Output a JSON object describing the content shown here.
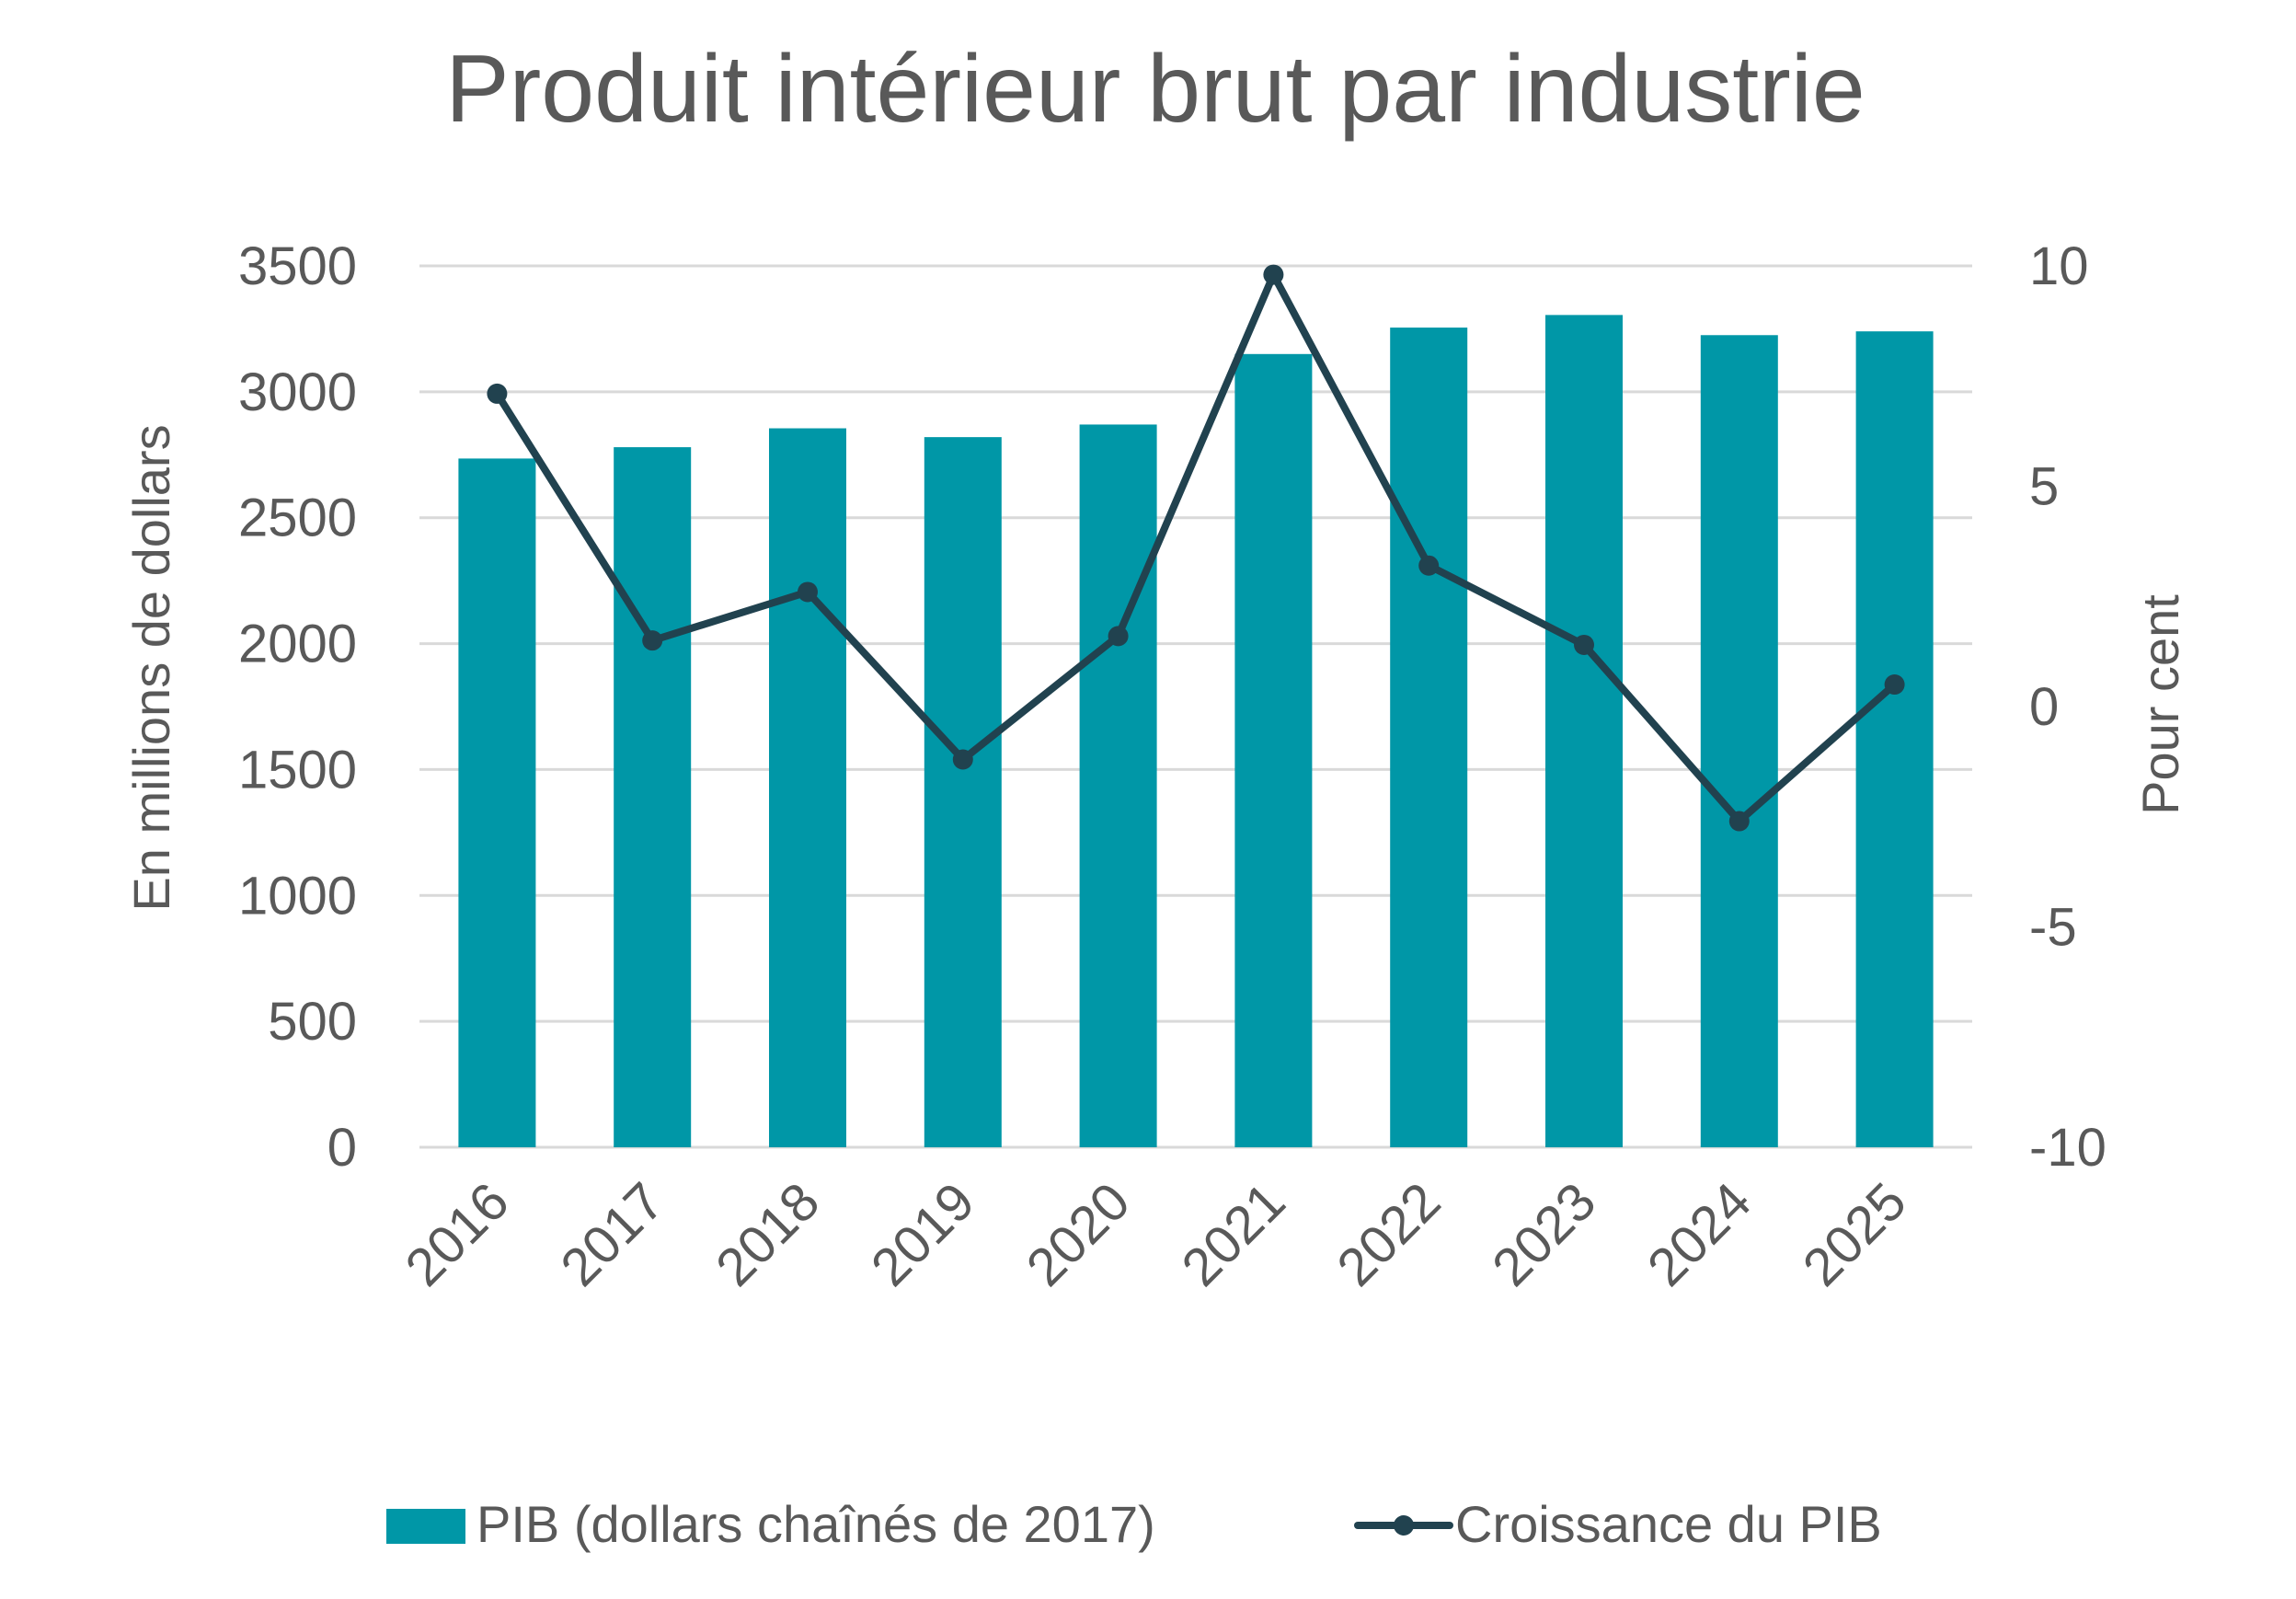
{
  "chart_data": {
    "type": "bar+line",
    "title": "Produit intérieur brut par industrie",
    "categories": [
      "2016",
      "2017",
      "2018",
      "2019",
      "2020",
      "2021",
      "2022",
      "2023",
      "2024",
      "2025"
    ],
    "series": [
      {
        "name": "PIB (dollars chaînés de 2017)",
        "type": "bar",
        "axis": "left",
        "values": [
          2735,
          2780,
          2855,
          2820,
          2870,
          3150,
          3255,
          3305,
          3225,
          3240
        ]
      },
      {
        "name": "Croissance du PIB",
        "type": "line",
        "axis": "right",
        "values": [
          7.1,
          1.5,
          2.6,
          -1.2,
          1.6,
          9.8,
          3.2,
          1.4,
          -2.6,
          0.5
        ]
      }
    ],
    "y_left": {
      "label": "En millions de dollars",
      "ylim": [
        0,
        3500
      ],
      "ticks": [
        "0",
        "500",
        "1000",
        "1500",
        "2000",
        "2500",
        "3000",
        "3500"
      ]
    },
    "y_right": {
      "label": "Pour cent",
      "ylim": [
        -10,
        10
      ],
      "ticks": [
        "-10",
        "-5",
        "0",
        "5",
        "10"
      ]
    },
    "xlabel": "",
    "grid": true,
    "legend_position": "bottom",
    "colors": {
      "bar": "#0097A7",
      "line": "#21424F",
      "grid": "#D9D9D9",
      "text": "#595959"
    }
  }
}
